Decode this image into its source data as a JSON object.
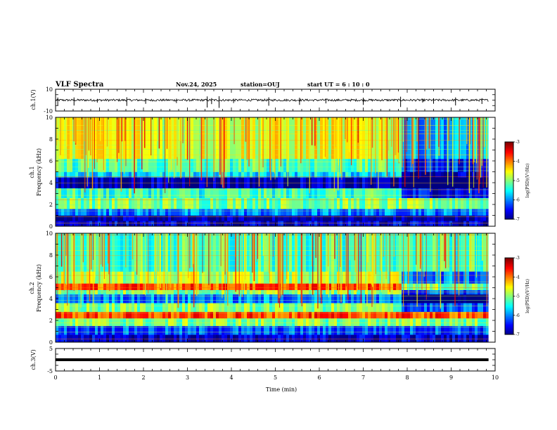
{
  "header": {
    "title": "VLF Spectra",
    "date": "Nov.24, 2025",
    "station": "station=OUJ",
    "start_time": "start  UT =   6 : 10 : 0"
  },
  "chart_data": [
    {
      "type": "line",
      "name": "ch1-waveform",
      "ylabel": "ch.1(V)",
      "ylim": [
        -10,
        10
      ],
      "ytick_labels": [
        "10",
        "-10"
      ],
      "baseline": 0,
      "noise_amplitude": 1,
      "spikes_min": [
        0.05,
        0.42,
        0.95,
        1.62,
        2.05,
        2.75,
        3.45,
        3.55,
        3.72,
        4.05,
        4.85,
        5.55,
        6.15,
        7.0,
        7.85,
        8.35,
        8.6,
        9.1,
        9.7
      ]
    },
    {
      "type": "heatmap",
      "name": "ch1-spectrogram",
      "ylabel": "ch.1\nFrequency  (kHz)",
      "ylim": [
        0,
        10
      ],
      "ytick_labels": [
        "0",
        "2",
        "4",
        "6",
        "8",
        "10"
      ],
      "value_units": "log(PSD)(V²/Hz)",
      "value_range": [
        -7,
        -3
      ],
      "bands_khz": [
        {
          "f0": 0.0,
          "f1": 0.5,
          "level": -6.6
        },
        {
          "f0": 0.5,
          "f1": 1.0,
          "level": -6.9
        },
        {
          "f0": 1.0,
          "f1": 1.6,
          "level": -6.0
        },
        {
          "f0": 1.6,
          "f1": 2.6,
          "level": -5.0
        },
        {
          "f0": 2.6,
          "f1": 3.5,
          "level": -5.3
        },
        {
          "f0": 3.5,
          "f1": 4.5,
          "level": -6.8
        },
        {
          "f0": 4.5,
          "f1": 5.0,
          "level": -5.6
        },
        {
          "f0": 5.0,
          "f1": 6.2,
          "level": -5.2
        },
        {
          "f0": 6.2,
          "f1": 10.0,
          "level": -4.6
        }
      ],
      "change_time_min": 7.85
    },
    {
      "type": "heatmap",
      "name": "ch2-spectrogram",
      "ylabel": "ch.2\nFrequency  (kHz)",
      "ylim": [
        0,
        10
      ],
      "ytick_labels": [
        "0",
        "2",
        "4",
        "6",
        "8",
        "10"
      ],
      "value_units": "log(PSD)(V²/Hz)",
      "value_range": [
        -7,
        -3
      ],
      "bands_khz": [
        {
          "f0": 0.0,
          "f1": 0.7,
          "level": -6.7
        },
        {
          "f0": 0.7,
          "f1": 1.5,
          "level": -6.2
        },
        {
          "f0": 1.5,
          "f1": 2.2,
          "level": -5.0
        },
        {
          "f0": 2.2,
          "f1": 2.8,
          "level": -3.8
        },
        {
          "f0": 2.8,
          "f1": 3.6,
          "level": -5.0
        },
        {
          "f0": 3.6,
          "f1": 4.4,
          "level": -6.0
        },
        {
          "f0": 4.4,
          "f1": 4.8,
          "level": -5.0
        },
        {
          "f0": 4.8,
          "f1": 5.4,
          "level": -3.8
        },
        {
          "f0": 5.4,
          "f1": 6.5,
          "level": -4.8
        },
        {
          "f0": 6.5,
          "f1": 10.0,
          "level": -5.2
        }
      ],
      "change_time_min": 7.85
    },
    {
      "type": "line",
      "name": "ch3-waveform",
      "ylabel": "ch.3(V)",
      "ylim": [
        -5,
        5
      ],
      "ytick_labels": [
        "5",
        "-5"
      ],
      "baseline": 0
    }
  ],
  "colorbar": {
    "label": "log(PSD)(V²/Hz)",
    "tick_labels": [
      "-3",
      "-4",
      "-5",
      "-6",
      "-7"
    ],
    "range": [
      -7,
      -3
    ]
  },
  "x_axis": {
    "label": "Time  (min)",
    "xlim": [
      0,
      10
    ],
    "tick_labels": [
      "0",
      "1",
      "2",
      "3",
      "4",
      "5",
      "6",
      "7",
      "8",
      "9",
      "10"
    ],
    "data_end_min": 9.85
  }
}
